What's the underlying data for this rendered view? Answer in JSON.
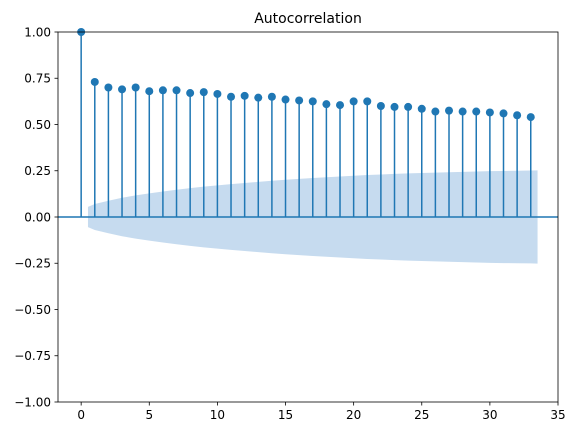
{
  "chart_data": {
    "type": "stem",
    "title": "Autocorrelation",
    "xlabel": "",
    "ylabel": "",
    "xlim": [
      -1.7,
      35.0
    ],
    "ylim": [
      -1.0,
      1.0
    ],
    "xticks": [
      0,
      5,
      10,
      15,
      20,
      25,
      30,
      35
    ],
    "yticks": [
      -1.0,
      -0.75,
      -0.5,
      -0.25,
      0.0,
      0.25,
      0.5,
      0.75,
      1.0
    ],
    "xtick_labels": [
      "0",
      "5",
      "10",
      "15",
      "20",
      "25",
      "30",
      "35"
    ],
    "ytick_labels": [
      "−1.00",
      "−0.75",
      "−0.50",
      "−0.25",
      "0.00",
      "0.25",
      "0.50",
      "0.75",
      "1.00"
    ],
    "grid": false,
    "lags": [
      0,
      1,
      2,
      3,
      4,
      5,
      6,
      7,
      8,
      9,
      10,
      11,
      12,
      13,
      14,
      15,
      16,
      17,
      18,
      19,
      20,
      21,
      22,
      23,
      24,
      25,
      26,
      27,
      28,
      29,
      30,
      31,
      32,
      33
    ],
    "values": [
      1.0,
      0.73,
      0.7,
      0.69,
      0.7,
      0.68,
      0.685,
      0.685,
      0.67,
      0.675,
      0.665,
      0.65,
      0.655,
      0.645,
      0.65,
      0.635,
      0.63,
      0.625,
      0.61,
      0.605,
      0.625,
      0.625,
      0.6,
      0.595,
      0.595,
      0.585,
      0.57,
      0.575,
      0.57,
      0.57,
      0.565,
      0.56,
      0.55,
      0.54
    ],
    "confidence_band": {
      "x": [
        0.5,
        1,
        2,
        3,
        4,
        5,
        6,
        7,
        8,
        9,
        10,
        11,
        12,
        13,
        14,
        15,
        16,
        17,
        18,
        19,
        20,
        21,
        22,
        23,
        24,
        25,
        26,
        27,
        28,
        29,
        30,
        31,
        32,
        33,
        33.5
      ],
      "upper": [
        0.055,
        0.07,
        0.088,
        0.104,
        0.117,
        0.128,
        0.138,
        0.147,
        0.156,
        0.164,
        0.171,
        0.178,
        0.184,
        0.19,
        0.196,
        0.201,
        0.206,
        0.211,
        0.215,
        0.219,
        0.223,
        0.227,
        0.23,
        0.233,
        0.236,
        0.238,
        0.24,
        0.242,
        0.244,
        0.246,
        0.248,
        0.249,
        0.25,
        0.251,
        0.252
      ]
    },
    "colors": {
      "stem": "#1f77b4",
      "band": "#c6dbef",
      "zero_line": "#1f77b4"
    }
  }
}
